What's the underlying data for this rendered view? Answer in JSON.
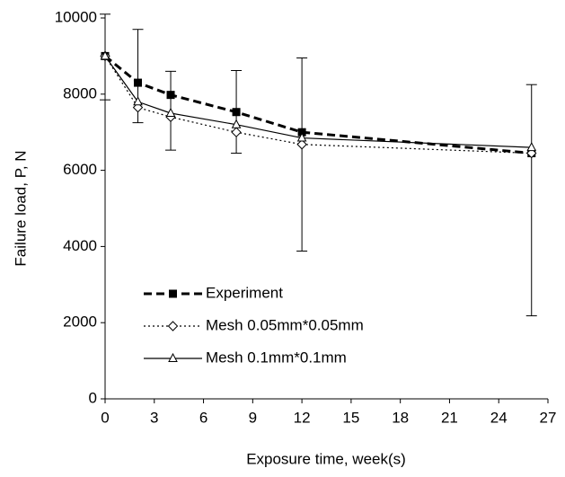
{
  "chart_data": {
    "type": "line",
    "x_label": "Exposure time, week(s)",
    "y_label": "Failure load, P, N",
    "xlim": [
      0,
      27
    ],
    "xticks": [
      0,
      3,
      6,
      9,
      12,
      15,
      18,
      21,
      24,
      27
    ],
    "ylim": [
      0,
      10000
    ],
    "yticks": [
      0,
      2000,
      4000,
      6000,
      8000,
      10000
    ],
    "grid": false,
    "legend": "lower-left",
    "x": [
      0,
      2,
      4,
      8,
      12,
      26
    ],
    "series": [
      {
        "name": "Experiment",
        "color": "#000000",
        "line_style": "dashed",
        "marker": "square",
        "values": [
          9000,
          8300,
          7980,
          7530,
          7000,
          6450
        ],
        "error_low": [
          7850,
          7250,
          6530,
          6450,
          3880,
          2180
        ],
        "error_high": [
          10100,
          9700,
          8600,
          8620,
          8950,
          8250
        ]
      },
      {
        "name": "Mesh 0.05mm*0.05mm",
        "color": "#000000",
        "line_style": "dotted",
        "marker": "diamond",
        "values": [
          9000,
          7650,
          7400,
          7000,
          6680,
          6450
        ]
      },
      {
        "name": "Mesh 0.1mm*0.1mm",
        "color": "#000000",
        "line_style": "solid",
        "marker": "triangle",
        "values": [
          9000,
          7800,
          7500,
          7200,
          6850,
          6600
        ]
      }
    ]
  }
}
